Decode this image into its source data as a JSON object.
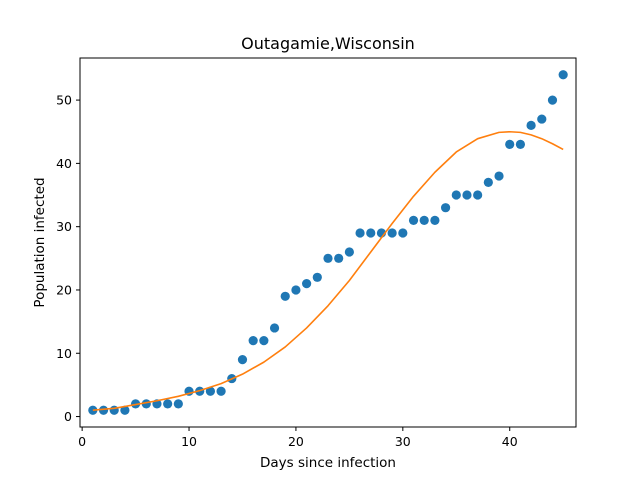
{
  "chart_data": {
    "type": "scatter",
    "title": "Outagamie,Wisconsin",
    "xlabel": "Days since infection",
    "ylabel": "Population infected",
    "xlim": [
      -0.2,
      46.2
    ],
    "ylim": [
      -1.65,
      56.65
    ],
    "xticks": [
      0,
      10,
      20,
      30,
      40
    ],
    "yticks": [
      0,
      10,
      20,
      30,
      40,
      50
    ],
    "grid": false,
    "series": [
      {
        "kind": "scatter",
        "color": "#1f77b4",
        "x": [
          1,
          2,
          3,
          4,
          5,
          6,
          7,
          8,
          9,
          10,
          11,
          12,
          13,
          14,
          15,
          16,
          17,
          18,
          19,
          20,
          21,
          22,
          23,
          24,
          25,
          26,
          27,
          28,
          29,
          30,
          31,
          32,
          33,
          34,
          35,
          36,
          37,
          38,
          39,
          40,
          41,
          42,
          43,
          44,
          45
        ],
        "y": [
          1,
          1,
          1,
          1,
          2,
          2,
          2,
          2,
          2,
          4,
          4,
          4,
          4,
          6,
          9,
          12,
          12,
          14,
          19,
          20,
          21,
          22,
          25,
          25,
          26,
          29,
          29,
          29,
          29,
          29,
          31,
          31,
          31,
          33,
          35,
          35,
          35,
          37,
          38,
          43,
          43,
          46,
          47,
          50,
          54
        ]
      },
      {
        "kind": "line",
        "color": "#ff7f0e",
        "x": [
          1,
          3,
          5,
          7,
          9,
          11,
          13,
          15,
          17,
          19,
          21,
          23,
          25,
          27,
          29,
          31,
          33,
          35,
          37,
          39,
          40,
          41,
          42,
          43,
          44,
          45
        ],
        "y": [
          1.0,
          1.3,
          1.9,
          2.5,
          3.2,
          4.1,
          5.2,
          6.7,
          8.6,
          11.0,
          14.0,
          17.5,
          21.5,
          26.0,
          30.5,
          34.8,
          38.6,
          41.8,
          43.9,
          44.9,
          45.0,
          44.9,
          44.5,
          43.9,
          43.1,
          42.2
        ]
      }
    ]
  }
}
